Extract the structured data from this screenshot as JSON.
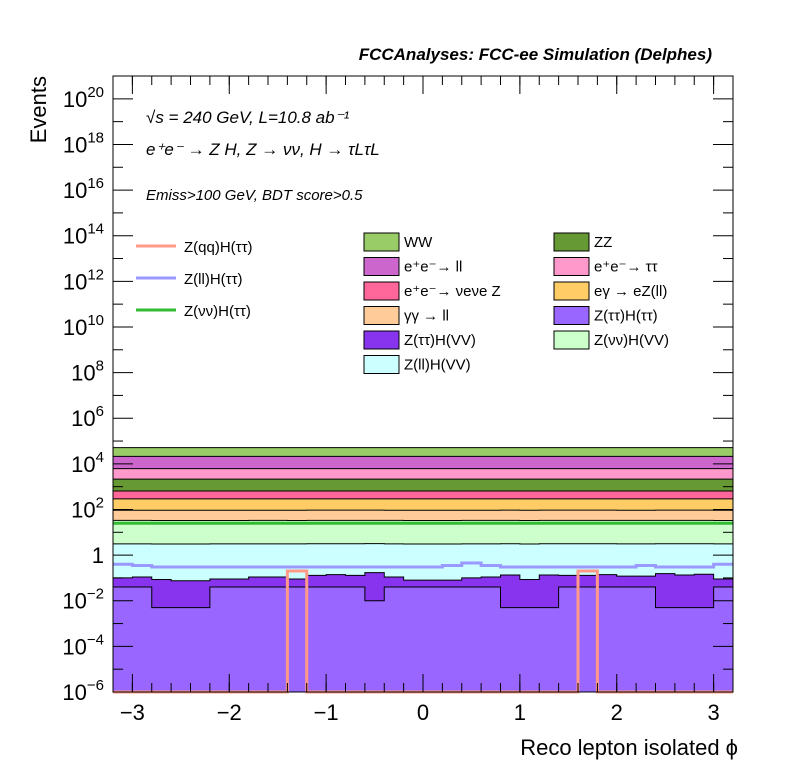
{
  "chart_data": {
    "type": "area",
    "title": "FCCAnalyses: FCC-ee Simulation (Delphes)",
    "xlabel": "Reco lepton isolated ϕ",
    "ylabel": "Events",
    "log_y": true,
    "xlim": [
      -3.2,
      3.2
    ],
    "ylim": [
      1e-06,
      1e+21
    ],
    "x_ticks": [
      -3,
      -2,
      -1,
      0,
      1,
      2,
      3
    ],
    "y_ticks": [
      {
        "value": 1e-06,
        "base": "10",
        "exp": "−6"
      },
      {
        "value": 0.0001,
        "base": "10",
        "exp": "−4"
      },
      {
        "value": 0.01,
        "base": "10",
        "exp": "−2"
      },
      {
        "value": 1,
        "base": "1",
        "exp": ""
      },
      {
        "value": 100.0,
        "base": "10",
        "exp": "2"
      },
      {
        "value": 10000.0,
        "base": "10",
        "exp": "4"
      },
      {
        "value": 1000000.0,
        "base": "10",
        "exp": "6"
      },
      {
        "value": 100000000.0,
        "base": "10",
        "exp": "8"
      },
      {
        "value": 10000000000.0,
        "base": "10",
        "exp": "10"
      },
      {
        "value": 1000000000000.0,
        "base": "10",
        "exp": "12"
      },
      {
        "value": 100000000000000.0,
        "base": "10",
        "exp": "14"
      },
      {
        "value": 1e+16,
        "base": "10",
        "exp": "16"
      },
      {
        "value": 1e+18,
        "base": "10",
        "exp": "18"
      },
      {
        "value": 1e+20,
        "base": "10",
        "exp": "20"
      }
    ],
    "annotations": {
      "line1": "√s = 240 GeV, L=10.8 ab⁻¹",
      "line2": "e⁺e⁻ → Z H, Z → νν, H → τLτL",
      "line3": "Emiss>100 GeV, BDT score>0.5"
    },
    "x_edges": [
      -3.2,
      -3.0,
      -2.8,
      -2.6,
      -2.4,
      -2.2,
      -2.0,
      -1.8,
      -1.6,
      -1.4,
      -1.2,
      -1.0,
      -0.8,
      -0.6,
      -0.4,
      -0.2,
      0.0,
      0.2,
      0.4,
      0.6,
      0.8,
      1.0,
      1.2,
      1.4,
      1.6,
      1.8,
      2.0,
      2.2,
      2.4,
      2.6,
      2.8,
      3.0,
      3.2
    ],
    "stack_order": [
      "Z(ττ)H(ττ)",
      "Z(ττ)H(VV)",
      "Z(ll)H(VV)",
      "Z(νν)H(VV)",
      "γγ → ll",
      "eγ → eZ(ll)",
      "e⁺e⁻→ νeνe Z",
      "ZZ",
      "e⁺e⁻→ ττ",
      "e⁺e⁻→ ll",
      "WW"
    ],
    "series": [
      {
        "name": "Z(ττ)H(ττ)",
        "color": "#9966ff",
        "kind": "stack",
        "values": [
          0.04,
          0.04,
          0.005,
          0.005,
          0.005,
          0.04,
          0.04,
          0.04,
          0.04,
          0.04,
          0.04,
          0.04,
          0.04,
          0.01,
          0.04,
          0.04,
          0.04,
          0.04,
          0.04,
          0.04,
          0.005,
          0.005,
          0.005,
          0.04,
          0.04,
          0.04,
          0.04,
          0.04,
          0.005,
          0.005,
          0.005,
          0.04
        ]
      },
      {
        "name": "Z(ττ)H(VV)",
        "color": "#8833ee",
        "kind": "stack",
        "values": [
          0.06,
          0.07,
          0.08,
          0.07,
          0.07,
          0.05,
          0.05,
          0.07,
          0.07,
          0.05,
          0.09,
          0.1,
          0.09,
          0.16,
          0.07,
          0.04,
          0.04,
          0.04,
          0.06,
          0.07,
          0.13,
          0.08,
          0.13,
          0.09,
          0.09,
          0.1,
          0.08,
          0.08,
          0.15,
          0.13,
          0.14,
          0.05
        ]
      },
      {
        "name": "Z(ll)H(VV)",
        "color": "#ccffff",
        "kind": "stack",
        "values": [
          3,
          3,
          3,
          3,
          3,
          3,
          3,
          3,
          3,
          3,
          3,
          3,
          3,
          3,
          3,
          3,
          3,
          3,
          3,
          3,
          3,
          3,
          3,
          3,
          3,
          3,
          3,
          3,
          3,
          3,
          3,
          3
        ]
      },
      {
        "name": "Z(νν)H(VV)",
        "color": "#ccffcc",
        "kind": "stack",
        "values": [
          30,
          30,
          30,
          30,
          30,
          30,
          30,
          30,
          30,
          30,
          30,
          30,
          30,
          30,
          30,
          30,
          30,
          30,
          30,
          30,
          30,
          30,
          30,
          30,
          30,
          30,
          30,
          30,
          30,
          30,
          30,
          30
        ]
      },
      {
        "name": "γγ → ll",
        "color": "#ffcc99",
        "kind": "stack",
        "values": [
          60,
          60,
          60,
          60,
          60,
          60,
          60,
          60,
          60,
          60,
          60,
          60,
          60,
          60,
          60,
          60,
          60,
          60,
          60,
          60,
          60,
          60,
          60,
          60,
          60,
          60,
          60,
          60,
          60,
          60,
          60,
          60
        ]
      },
      {
        "name": "eγ → eZ(ll)",
        "color": "#ffcc66",
        "kind": "stack",
        "values": [
          200,
          200,
          200,
          200,
          200,
          200,
          200,
          200,
          200,
          200,
          200,
          200,
          200,
          200,
          200,
          200,
          200,
          200,
          200,
          200,
          200,
          200,
          200,
          200,
          200,
          200,
          200,
          200,
          200,
          200,
          200,
          200
        ]
      },
      {
        "name": "e⁺e⁻→ νeνe Z",
        "color": "#ff6699",
        "kind": "stack",
        "values": [
          350,
          350,
          350,
          350,
          350,
          350,
          350,
          350,
          350,
          350,
          350,
          350,
          350,
          350,
          350,
          350,
          350,
          350,
          350,
          350,
          350,
          350,
          350,
          350,
          350,
          350,
          350,
          350,
          350,
          350,
          350,
          350
        ]
      },
      {
        "name": "ZZ",
        "color": "#669933",
        "kind": "stack",
        "values": [
          1500,
          1500,
          1500,
          1500,
          1500,
          1500,
          1500,
          1500,
          1500,
          1500,
          1500,
          1500,
          1500,
          1500,
          1500,
          1500,
          1500,
          1500,
          1500,
          1500,
          1500,
          1500,
          1500,
          1500,
          1500,
          1500,
          1500,
          1500,
          1500,
          1500,
          1500,
          1500
        ]
      },
      {
        "name": "e⁺e⁻→ ττ",
        "color": "#ff99cc",
        "kind": "stack",
        "values": [
          4000,
          4000,
          4000,
          4000,
          4000,
          4000,
          4000,
          4000,
          4000,
          4000,
          4000,
          4000,
          4000,
          4000,
          4000,
          4000,
          4000,
          4000,
          4000,
          4000,
          4000,
          4000,
          4000,
          4000,
          4000,
          4000,
          4000,
          4000,
          4000,
          4000,
          4000,
          4000
        ]
      },
      {
        "name": "e⁺e⁻→ ll",
        "color": "#cc66cc",
        "kind": "stack",
        "values": [
          15000,
          15000,
          15000,
          15000,
          15000,
          15000,
          15000,
          15000,
          15000,
          15000,
          15000,
          15000,
          15000,
          15000,
          15000,
          15000,
          15000,
          15000,
          15000,
          15000,
          15000,
          15000,
          15000,
          15000,
          15000,
          15000,
          15000,
          15000,
          15000,
          15000,
          15000,
          15000
        ]
      },
      {
        "name": "WW",
        "color": "#99cc66",
        "kind": "stack",
        "values": [
          30000,
          30000,
          30000,
          30000,
          30000,
          30000,
          30000,
          30000,
          30000,
          30000,
          30000,
          30000,
          30000,
          30000,
          30000,
          30000,
          30000,
          30000,
          30000,
          30000,
          30000,
          30000,
          30000,
          30000,
          30000,
          30000,
          30000,
          30000,
          30000,
          30000,
          30000,
          30000
        ]
      },
      {
        "name": "Z(qq)H(ττ)",
        "color": "#ff9988",
        "kind": "line",
        "values": [
          1e-07,
          1e-07,
          1e-07,
          1e-07,
          1e-07,
          1e-07,
          1e-07,
          1e-07,
          1e-07,
          0.2,
          1e-07,
          1e-07,
          1e-07,
          1e-07,
          1e-07,
          1e-07,
          1e-07,
          1e-07,
          1e-07,
          1e-07,
          1e-07,
          1e-07,
          1e-07,
          1e-07,
          0.2,
          1e-07,
          1e-07,
          1e-07,
          1e-07,
          1e-07,
          1e-07,
          1e-07
        ]
      },
      {
        "name": "Z(ll)H(ττ)",
        "color": "#9999ff",
        "kind": "line",
        "values": [
          0.4,
          0.35,
          0.3,
          0.3,
          0.3,
          0.3,
          0.3,
          0.3,
          0.3,
          0.3,
          0.3,
          0.3,
          0.3,
          0.3,
          0.3,
          0.3,
          0.3,
          0.35,
          0.45,
          0.35,
          0.3,
          0.3,
          0.3,
          0.3,
          0.3,
          0.3,
          0.3,
          0.35,
          0.3,
          0.3,
          0.3,
          0.4
        ]
      },
      {
        "name": "Z(νν)H(ττ)",
        "color": "#33bb33",
        "kind": "line",
        "values": [
          25,
          25,
          25,
          25,
          25,
          25,
          25,
          25,
          25,
          25,
          25,
          25,
          25,
          25,
          25,
          25,
          25,
          25,
          25,
          25,
          25,
          25,
          25,
          25,
          25,
          25,
          25,
          25,
          25,
          25,
          25,
          25
        ]
      }
    ],
    "legend": {
      "lines": [
        "Z(qq)H(ττ)",
        "Z(ll)H(ττ)",
        "Z(νν)H(ττ)"
      ],
      "boxes": [
        "WW",
        "ZZ",
        "e⁺e⁻→ ll",
        "e⁺e⁻→ ττ",
        "e⁺e⁻→ νeνe Z",
        "eγ → eZ(ll)",
        "γγ → ll",
        "Z(ττ)H(ττ)",
        "Z(ττ)H(VV)",
        "Z(νν)H(VV)",
        "Z(ll)H(VV)"
      ]
    },
    "grid": false,
    "legend_placement": "top-center"
  }
}
